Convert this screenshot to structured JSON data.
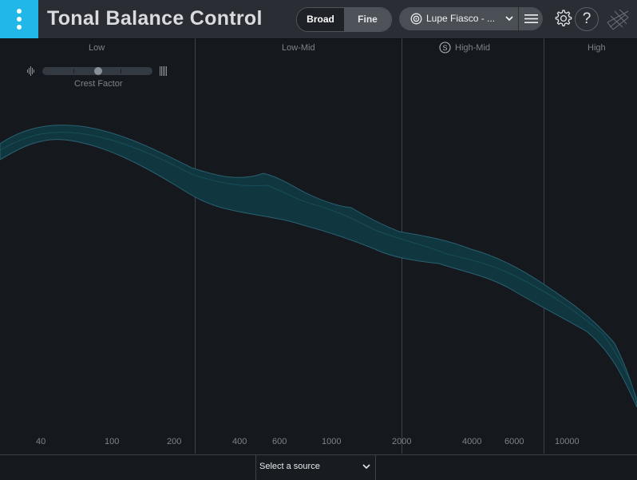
{
  "header": {
    "title": "Tonal Balance Control",
    "view_modes": [
      "Broad",
      "Fine"
    ],
    "active_view": "Fine",
    "target": {
      "label": "Lupe Fiasco - ...",
      "icon": "target-icon"
    },
    "menu_icon": "hamburger-menu-icon",
    "settings_icon": "gear-icon",
    "help_label": "?",
    "brand_icon": "izotope-logo-icon"
  },
  "bands": [
    "Low",
    "Low-Mid",
    "High-Mid",
    "High"
  ],
  "solo_icon_label": "S",
  "crest_factor": {
    "label": "Crest Factor",
    "value": 0.5
  },
  "frequency_axis": [
    "40",
    "100",
    "200",
    "400",
    "600",
    "1000",
    "2000",
    "4000",
    "6000",
    "10000"
  ],
  "footer": {
    "source_label": "Select a source"
  },
  "colors": {
    "accent": "#21b8e8",
    "band_fill": "#0f3d47"
  }
}
